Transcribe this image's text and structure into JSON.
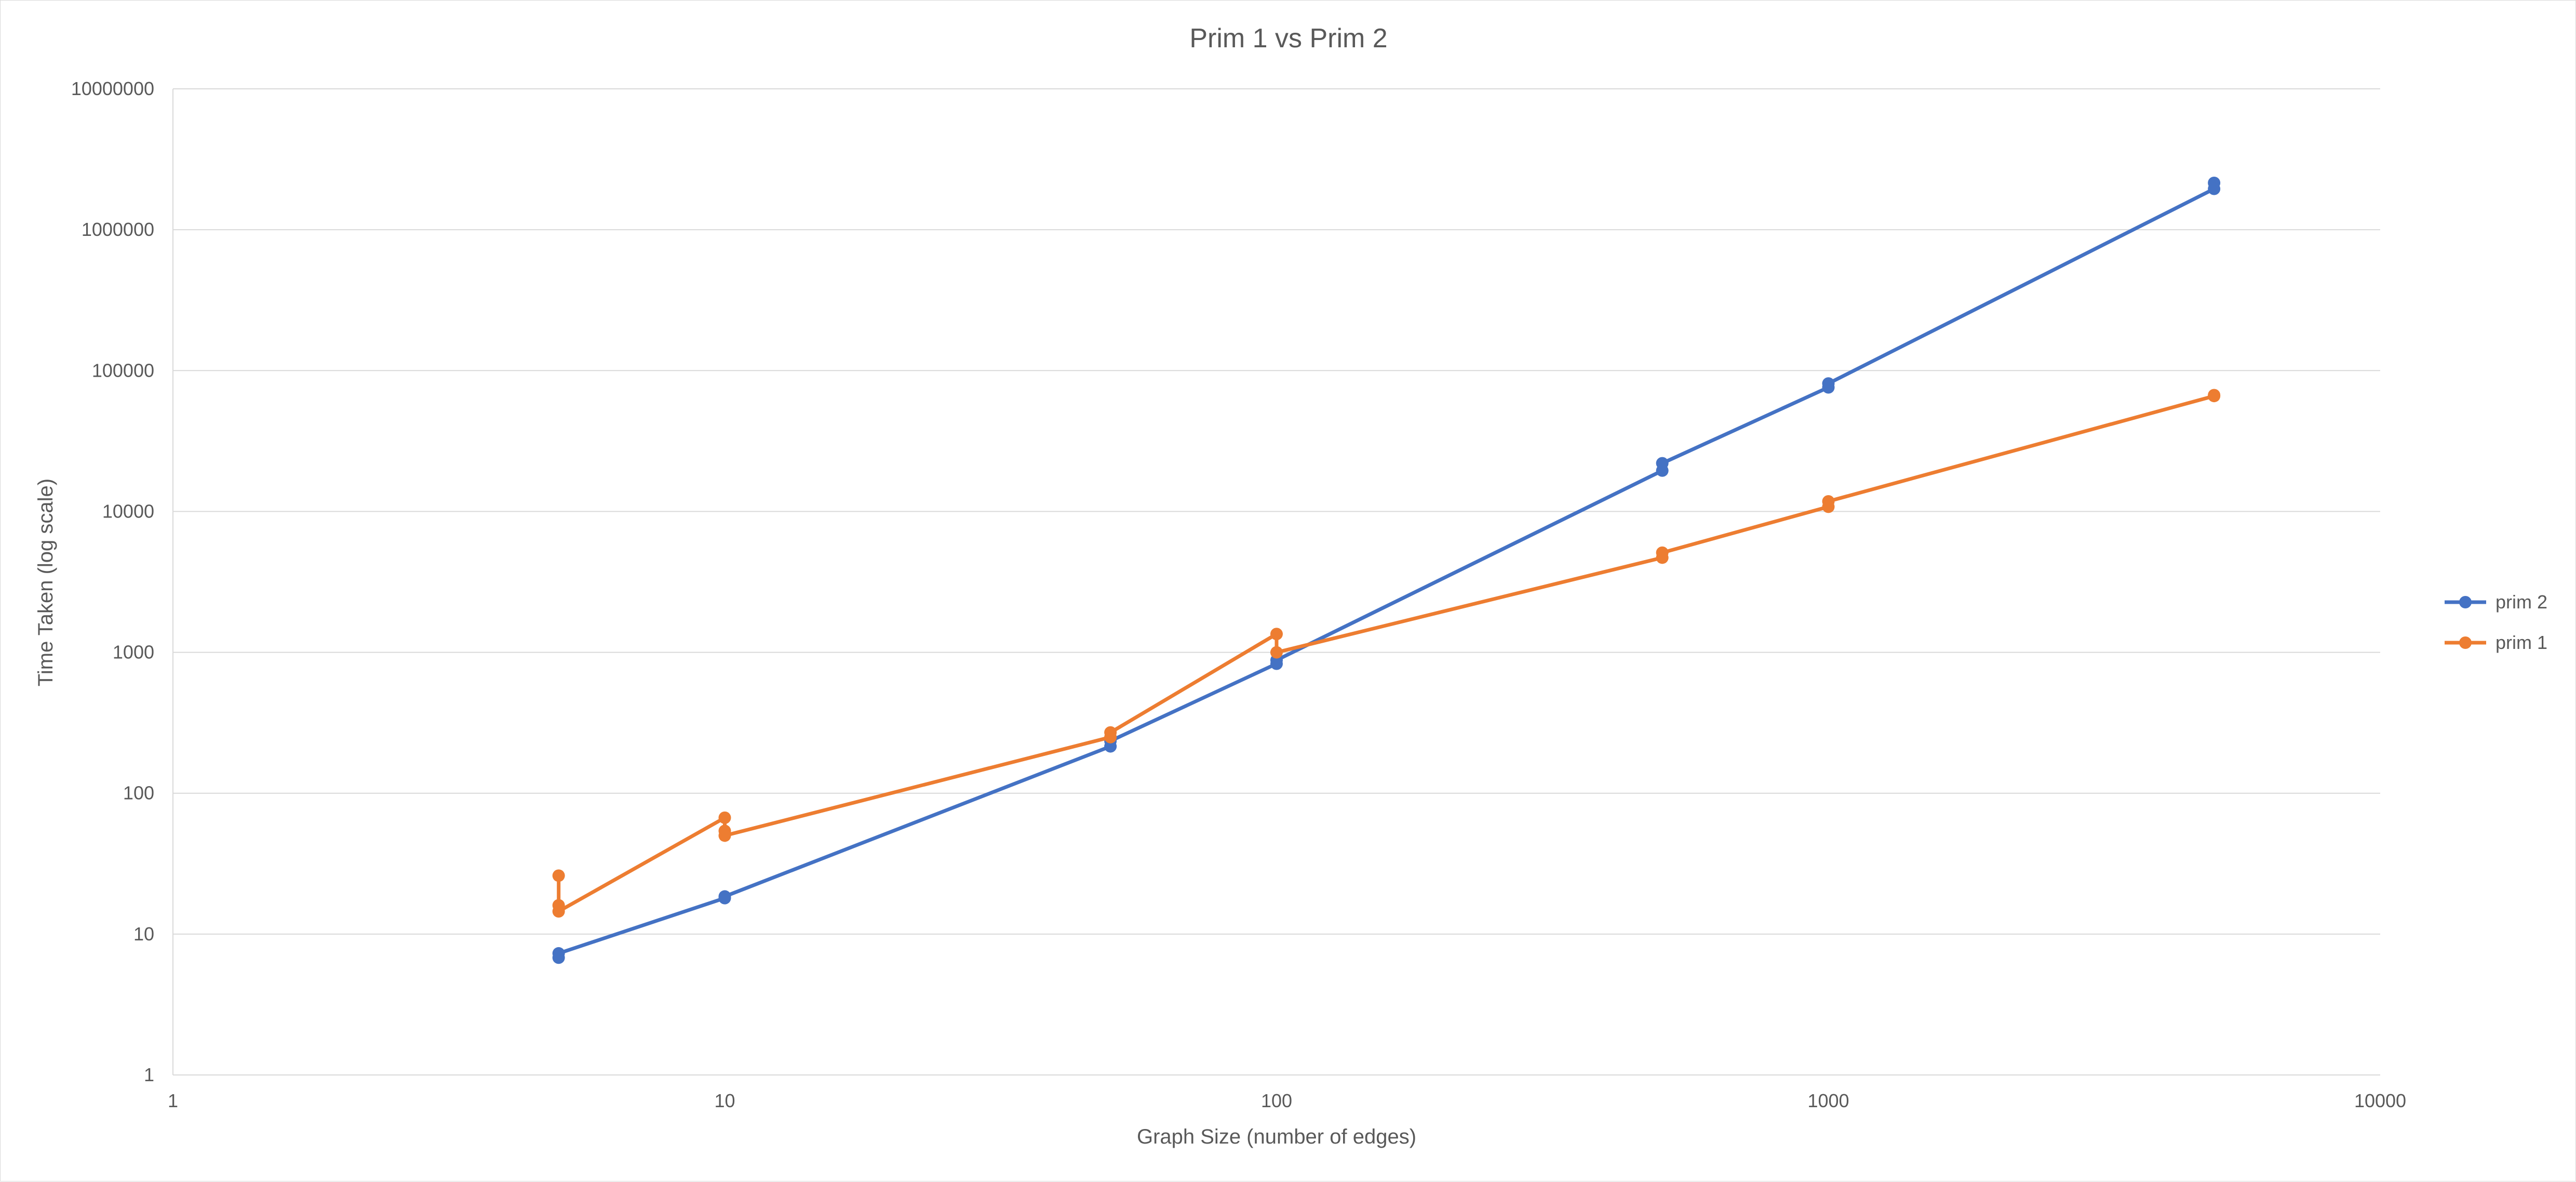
{
  "chart_data": {
    "type": "line",
    "title": "Prim 1 vs Prim 2",
    "xlabel": "Graph Size (number of edges)",
    "ylabel": "Time Taken (log scale)",
    "x_scale": "log",
    "y_scale": "log",
    "xlim": [
      1,
      10000
    ],
    "ylim": [
      1,
      10000000
    ],
    "x_ticks": [
      "1",
      "10",
      "100",
      "1000",
      "10000"
    ],
    "y_ticks": [
      "1",
      "10",
      "100",
      "1000",
      "10000",
      "100000",
      "1000000",
      "10000000"
    ],
    "grid": "horizontal",
    "legend_position": "right",
    "series": [
      {
        "name": "prim 2",
        "color": "#4472C4",
        "points": [
          [
            5,
            6.8
          ],
          [
            5,
            7.3
          ],
          [
            10,
            18
          ],
          [
            10,
            18.5
          ],
          [
            50,
            215
          ],
          [
            50,
            235
          ],
          [
            100,
            830
          ],
          [
            100,
            880
          ],
          [
            500,
            19500
          ],
          [
            500,
            22000
          ],
          [
            1000,
            76000
          ],
          [
            1000,
            81000
          ],
          [
            5000,
            1950000
          ],
          [
            5000,
            2150000
          ]
        ]
      },
      {
        "name": "prim 1",
        "color": "#ED7D31",
        "points": [
          [
            5,
            26
          ],
          [
            5,
            16
          ],
          [
            5,
            14.5
          ],
          [
            10,
            67
          ],
          [
            10,
            54
          ],
          [
            10,
            50
          ],
          [
            50,
            250
          ],
          [
            50,
            270
          ],
          [
            100,
            1350
          ],
          [
            100,
            1000
          ],
          [
            500,
            4700
          ],
          [
            500,
            5100
          ],
          [
            1000,
            10800
          ],
          [
            1000,
            11800
          ],
          [
            5000,
            66000
          ],
          [
            5000,
            67000
          ]
        ]
      }
    ]
  }
}
